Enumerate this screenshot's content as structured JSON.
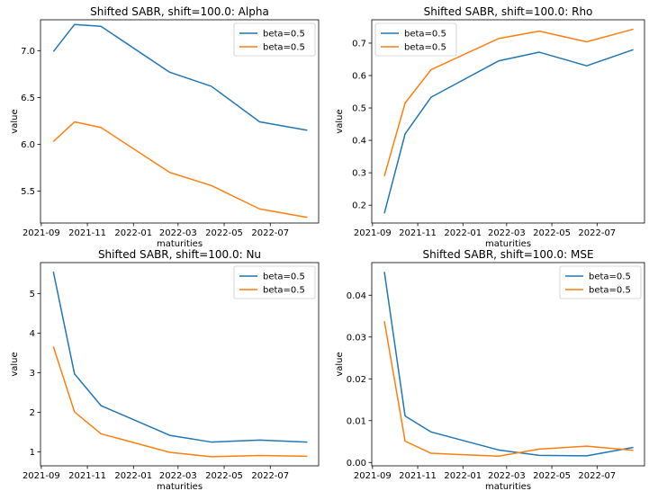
{
  "chart_data": [
    {
      "type": "line",
      "title": "Shifted SABR, shift=100.0: Alpha",
      "xlabel": "maturities",
      "ylabel": "value",
      "x_ticks": [
        "2021-09",
        "2021-11",
        "2022-01",
        "2022-03",
        "2022-05",
        "2022-07"
      ],
      "y_ticks": [
        "5.5",
        "6.0",
        "6.5",
        "7.0"
      ],
      "ylim": [
        5.16,
        7.33
      ],
      "legend_position": "top-right",
      "x": [
        "2021-09-17",
        "2021-10-15",
        "2021-11-19",
        "2022-02-18",
        "2022-04-14",
        "2022-06-17",
        "2022-08-19"
      ],
      "series": [
        {
          "name": "beta=0.5",
          "color": "#1f77b4",
          "values": [
            6.99,
            7.28,
            7.26,
            6.77,
            6.62,
            6.24,
            6.15
          ]
        },
        {
          "name": "beta=0.5",
          "color": "#ff7f0e",
          "values": [
            6.03,
            6.24,
            6.18,
            5.7,
            5.56,
            5.31,
            5.22
          ]
        }
      ]
    },
    {
      "type": "line",
      "title": "Shifted SABR, shift=100.0: Rho",
      "xlabel": "maturities",
      "ylabel": "value",
      "x_ticks": [
        "2021-09",
        "2021-11",
        "2022-01",
        "2022-03",
        "2022-05",
        "2022-07"
      ],
      "y_ticks": [
        "0.2",
        "0.3",
        "0.4",
        "0.5",
        "0.6",
        "0.7"
      ],
      "ylim": [
        0.145,
        0.772
      ],
      "legend_position": "top-left",
      "x": [
        "2021-09-17",
        "2021-10-15",
        "2021-11-19",
        "2022-02-18",
        "2022-04-14",
        "2022-06-17",
        "2022-08-19"
      ],
      "series": [
        {
          "name": "beta=0.5",
          "color": "#1f77b4",
          "values": [
            0.175,
            0.42,
            0.533,
            0.645,
            0.672,
            0.63,
            0.68
          ]
        },
        {
          "name": "beta=0.5",
          "color": "#ff7f0e",
          "values": [
            0.29,
            0.515,
            0.618,
            0.714,
            0.737,
            0.704,
            0.743
          ]
        }
      ]
    },
    {
      "type": "line",
      "title": "Shifted SABR, shift=100.0: Nu",
      "xlabel": "maturities",
      "ylabel": "value",
      "x_ticks": [
        "2021-09",
        "2021-11",
        "2022-01",
        "2022-03",
        "2022-05",
        "2022-07"
      ],
      "y_ticks": [
        "1",
        "2",
        "3",
        "4",
        "5"
      ],
      "ylim": [
        0.65,
        5.78
      ],
      "legend_position": "top-right",
      "x": [
        "2021-09-17",
        "2021-10-15",
        "2021-11-19",
        "2022-02-18",
        "2022-04-14",
        "2022-06-17",
        "2022-08-19"
      ],
      "series": [
        {
          "name": "beta=0.5",
          "color": "#1f77b4",
          "values": [
            5.55,
            2.97,
            2.17,
            1.42,
            1.25,
            1.3,
            1.25
          ]
        },
        {
          "name": "beta=0.5",
          "color": "#ff7f0e",
          "values": [
            3.66,
            2.01,
            1.46,
            0.99,
            0.88,
            0.91,
            0.89
          ]
        }
      ]
    },
    {
      "type": "line",
      "title": "Shifted SABR, shift=100.0: MSE",
      "xlabel": "maturities",
      "ylabel": "value",
      "x_ticks": [
        "2021-09",
        "2021-11",
        "2022-01",
        "2022-03",
        "2022-05",
        "2022-07"
      ],
      "y_ticks": [
        "0.00",
        "0.01",
        "0.02",
        "0.03",
        "0.04"
      ],
      "ylim": [
        -0.0008,
        0.0478
      ],
      "legend_position": "top-right",
      "x": [
        "2021-09-17",
        "2021-10-15",
        "2021-11-19",
        "2022-02-18",
        "2022-04-14",
        "2022-06-17",
        "2022-08-19"
      ],
      "series": [
        {
          "name": "beta=0.5",
          "color": "#1f77b4",
          "values": [
            0.0456,
            0.0111,
            0.0073,
            0.003,
            0.0017,
            0.0016,
            0.0036
          ]
        },
        {
          "name": "beta=0.5",
          "color": "#ff7f0e",
          "values": [
            0.0338,
            0.0051,
            0.0022,
            0.0015,
            0.0032,
            0.0039,
            0.0029
          ]
        }
      ]
    }
  ]
}
